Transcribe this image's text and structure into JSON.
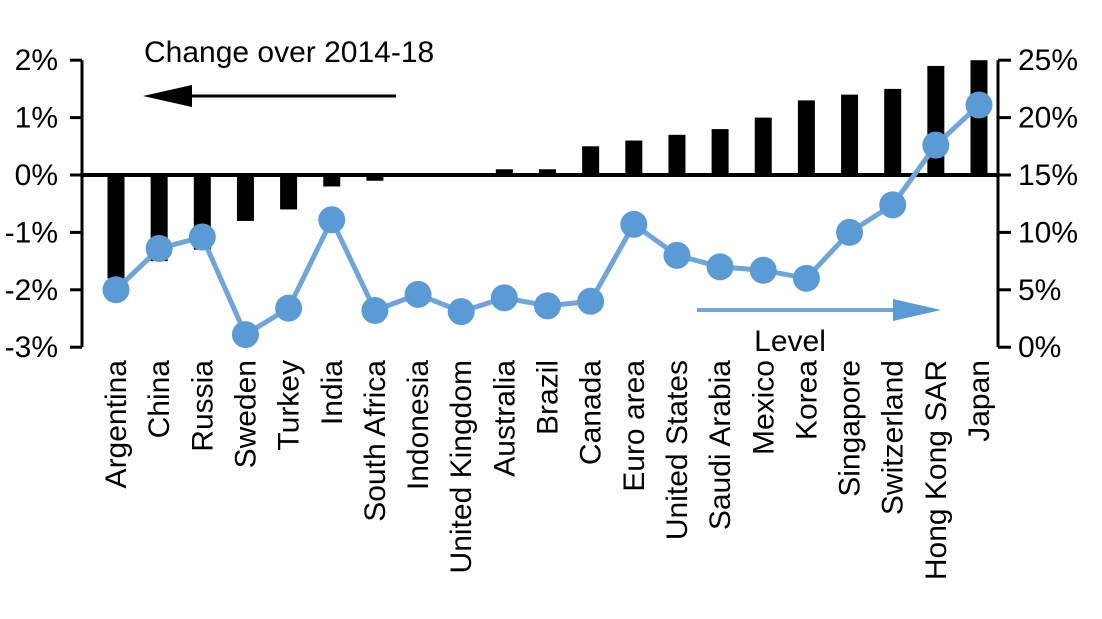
{
  "chart_data": {
    "type": "bar+line",
    "title": "Change over 2014-18",
    "categories": [
      "Argentina",
      "China",
      "Russia",
      "Sweden",
      "Turkey",
      "India",
      "South Africa",
      "Indonesia",
      "United Kingdom",
      "Australia",
      "Brazil",
      "Canada",
      "Euro area",
      "United States",
      "Saudi Arabia",
      "Mexico",
      "Korea",
      "Singapore",
      "Switzerland",
      "Hong Kong SAR",
      "Japan"
    ],
    "series": [
      {
        "name": "Change over 2014-18",
        "type": "bar",
        "axis": "left",
        "color": "#000000",
        "values": [
          -1.8,
          -1.5,
          -1.3,
          -0.8,
          -0.6,
          -0.2,
          -0.1,
          0,
          0,
          0.1,
          0.1,
          0.5,
          0.6,
          0.7,
          0.8,
          1.0,
          1.3,
          1.4,
          1.5,
          1.9,
          2.0
        ]
      },
      {
        "name": "Level",
        "type": "line",
        "axis": "right",
        "color": "#5B9BD5",
        "values": [
          5.0,
          8.6,
          9.6,
          1.1,
          3.4,
          11.1,
          3.2,
          4.6,
          3.1,
          4.3,
          3.6,
          4.0,
          10.7,
          8.0,
          7.0,
          6.7,
          6.0,
          10.0,
          12.4,
          17.6,
          21.1
        ]
      }
    ],
    "left_axis": {
      "tick_labels": [
        "2%",
        "1%",
        "0%",
        "-1%",
        "-2%",
        "-3%"
      ],
      "ticks": [
        2,
        1,
        0,
        -1,
        -2,
        -3
      ],
      "range": [
        -3,
        2
      ],
      "grid": false
    },
    "right_axis": {
      "tick_labels": [
        "25%",
        "20%",
        "15%",
        "10%",
        "5%",
        "0%"
      ],
      "ticks": [
        25,
        20,
        15,
        10,
        5,
        0
      ],
      "range": [
        0,
        25
      ],
      "grid": false
    },
    "annotations": {
      "bar_series_label": "Change over 2014-18",
      "bar_arrow_direction": "left",
      "line_series_label": "Level",
      "line_arrow_direction": "right"
    },
    "colors": {
      "bar": "#000000",
      "line": "#6FA5D8",
      "marker": "#5B9BD5",
      "arrow_black": "#000000",
      "arrow_blue": "#6FA5D8",
      "axis": "#000000",
      "text": "#000000"
    },
    "legend_position": "none"
  }
}
